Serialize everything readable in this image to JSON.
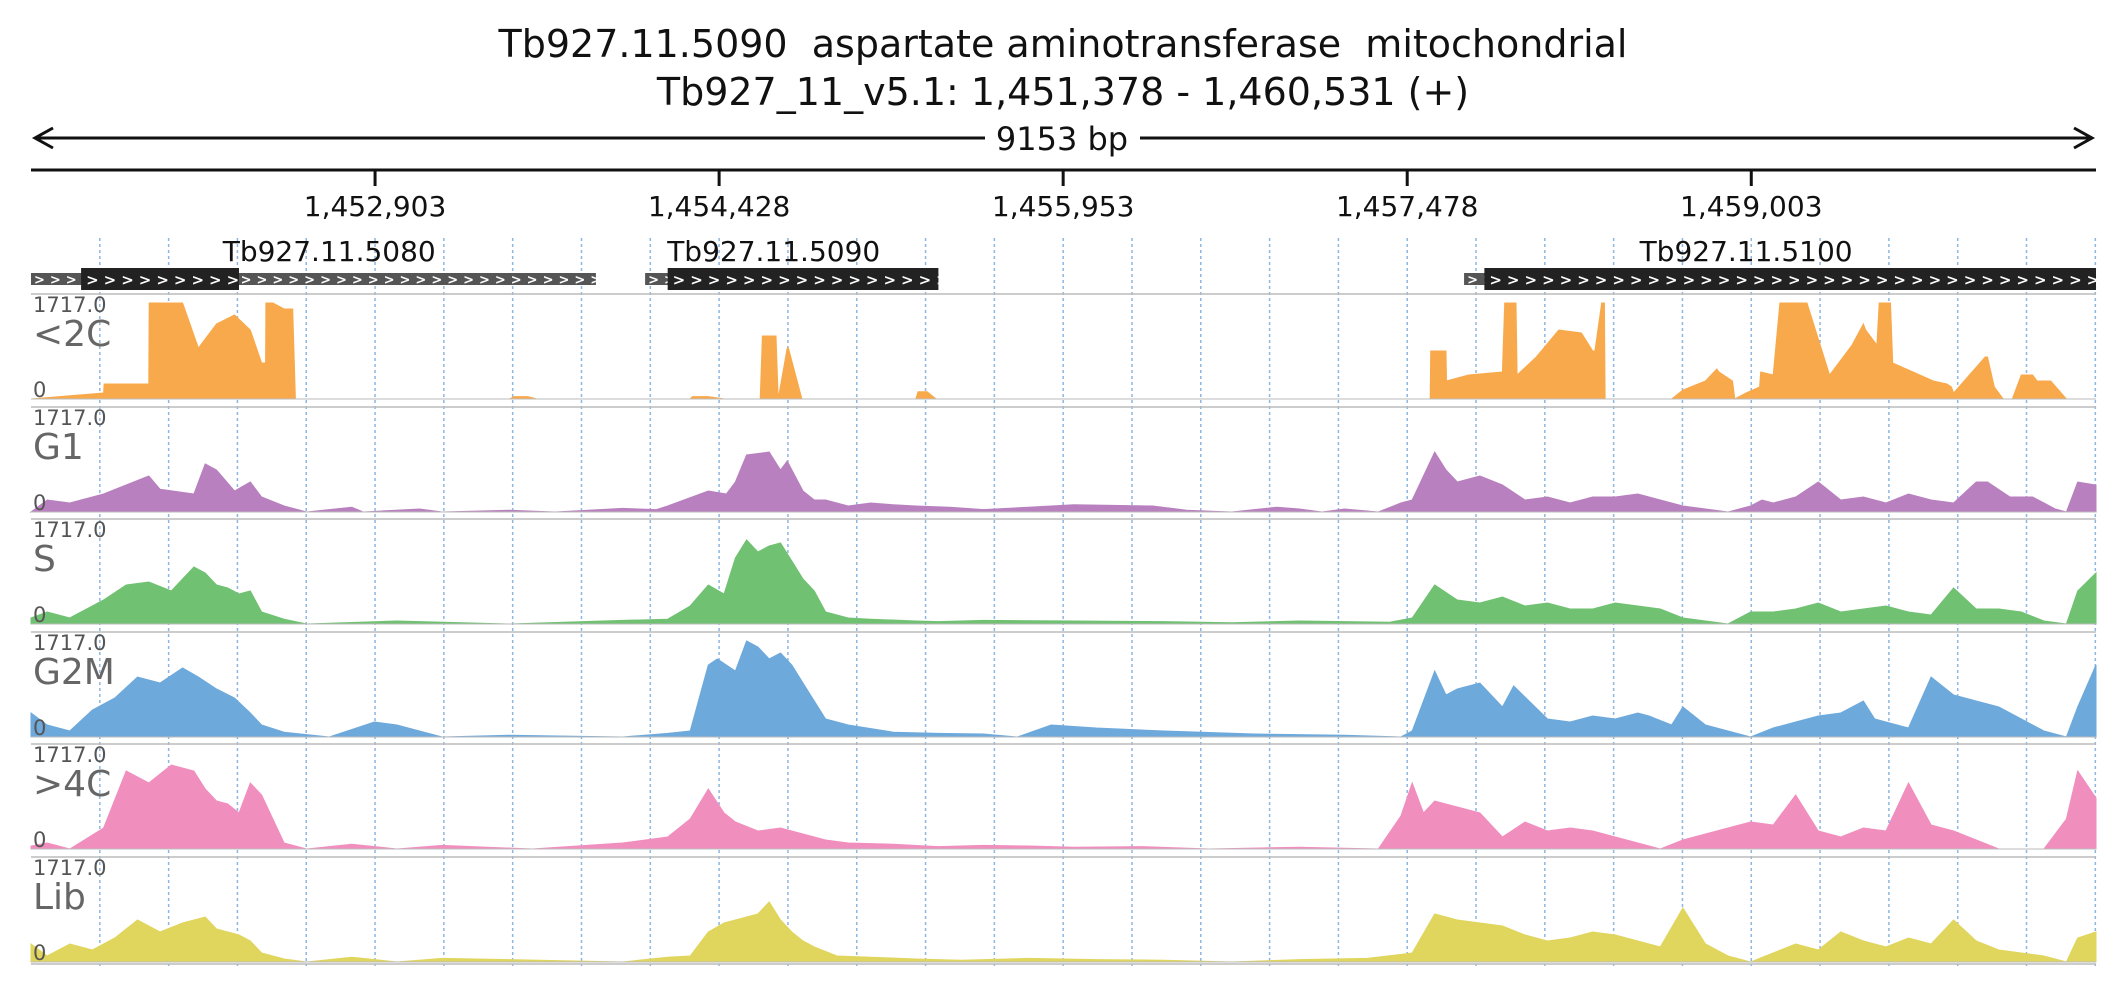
{
  "title_line1": "Tb927.11.5090  aspartate aminotransferase  mitochondrial",
  "title_line2": "Tb927_11_v5.1: 1,451,378 - 1,460,531 (+)",
  "chart_data": {
    "type": "area",
    "region": {
      "chromosome": "Tb927_11_v5.1",
      "start": 1451378,
      "end": 1460531,
      "strand": "+"
    },
    "span_label": "9153 bp",
    "ticks": [
      {
        "pos": 1452903,
        "label": "1,452,903"
      },
      {
        "pos": 1454428,
        "label": "1,454,428"
      },
      {
        "pos": 1455953,
        "label": "1,455,953"
      },
      {
        "pos": 1457478,
        "label": "1,457,478"
      },
      {
        "pos": 1459003,
        "label": "1,459,003"
      }
    ],
    "genes": [
      {
        "name": "Tb927.11.5080",
        "utr_start": 1451378,
        "utr_end": 1453882,
        "cds_start": 1451600,
        "cds_end": 1452300,
        "label_pos": 1452700
      },
      {
        "name": "Tb927.11.5090",
        "utr_start": 1454100,
        "utr_end": 1455400,
        "cds_start": 1454200,
        "cds_end": 1455400,
        "label_pos": 1454670
      },
      {
        "name": "Tb927.11.5100",
        "utr_start": 1457730,
        "utr_end": 1460531,
        "cds_start": 1457820,
        "cds_end": 1460531,
        "label_pos": 1458980
      }
    ],
    "ymax_label": "1717.0",
    "ymin_label": "0",
    "y_range": [
      0,
      1717.0
    ],
    "tracks": [
      {
        "name": "<2C",
        "color": "#F8A94B",
        "x": [
          1451378,
          1451700,
          1451702,
          1451900,
          1451902,
          1452050,
          1452120,
          1452200,
          1452280,
          1452350,
          1452400,
          1452418,
          1452419,
          1452450,
          1452500,
          1452538,
          1452550,
          1452630,
          1452700,
          1452800,
          1453500,
          1453520,
          1453580,
          1453620,
          1454300,
          1454310,
          1454380,
          1454450,
          1454520,
          1454610,
          1454620,
          1454680,
          1454690,
          1454730,
          1454735,
          1454795,
          1454800,
          1454900,
          1455300,
          1455310,
          1455350,
          1455390,
          1455395,
          1455500,
          1457580,
          1457582,
          1457650,
          1457652,
          1457750,
          1457900,
          1457910,
          1457960,
          1457965,
          1458050,
          1458150,
          1458250,
          1458300,
          1458310,
          1458340,
          1458352,
          1458355,
          1458450,
          1458650,
          1458700,
          1458800,
          1458850,
          1458860,
          1458920,
          1458930,
          1458980,
          1459040,
          1459045,
          1459100,
          1459130,
          1459250,
          1459350,
          1459450,
          1459500,
          1459510,
          1459560,
          1459570,
          1459620,
          1459630,
          1459810,
          1459870,
          1459890,
          1459900,
          1460040,
          1460050,
          1460080,
          1460120,
          1460160,
          1460200,
          1460250,
          1460270,
          1460330,
          1460400,
          1460531
        ],
        "y": [
          0,
          100,
          250,
          250,
          1600,
          1600,
          850,
          1250,
          1400,
          1150,
          600,
          600,
          1600,
          1600,
          1500,
          1500,
          0,
          0,
          0,
          0,
          0,
          40,
          40,
          0,
          0,
          40,
          40,
          0,
          0,
          0,
          1050,
          1050,
          0,
          850,
          850,
          0,
          0,
          0,
          0,
          120,
          120,
          0,
          0,
          0,
          0,
          800,
          800,
          300,
          400,
          450,
          1600,
          1600,
          400,
          700,
          1150,
          1100,
          800,
          800,
          1600,
          1600,
          0,
          0,
          0,
          150,
          300,
          500,
          450,
          300,
          0,
          100,
          200,
          450,
          400,
          1600,
          1600,
          400,
          900,
          1250,
          1150,
          900,
          1600,
          1600,
          600,
          300,
          250,
          200,
          100,
          700,
          700,
          200,
          0,
          0,
          400,
          400,
          300,
          300,
          0,
          0
        ]
      },
      {
        "name": "G1",
        "color": "#B880BE",
        "x": [
          1451378,
          1451450,
          1451550,
          1451700,
          1451800,
          1451900,
          1451950,
          1452100,
          1452150,
          1452200,
          1452280,
          1452350,
          1452400,
          1452500,
          1452600,
          1452800,
          1452850,
          1453100,
          1453200,
          1453500,
          1453700,
          1454000,
          1454150,
          1454200,
          1454380,
          1454460,
          1454500,
          1454550,
          1454650,
          1454700,
          1454730,
          1454800,
          1454850,
          1454900,
          1455000,
          1455100,
          1455200,
          1455300,
          1455450,
          1455600,
          1455800,
          1456000,
          1456350,
          1456500,
          1456700,
          1456900,
          1457000,
          1457100,
          1457200,
          1457350,
          1457450,
          1457500,
          1457600,
          1457650,
          1457700,
          1457800,
          1457900,
          1458000,
          1458100,
          1458200,
          1458300,
          1458400,
          1458500,
          1458600,
          1458700,
          1458800,
          1458900,
          1459000,
          1459050,
          1459100,
          1459200,
          1459300,
          1459400,
          1459500,
          1459600,
          1459700,
          1459800,
          1459900,
          1460000,
          1460050,
          1460150,
          1460250,
          1460300,
          1460350,
          1460400,
          1460450,
          1460531
        ],
        "y": [
          0,
          200,
          150,
          300,
          450,
          600,
          380,
          300,
          800,
          700,
          350,
          500,
          250,
          100,
          0,
          80,
          0,
          50,
          0,
          30,
          0,
          60,
          40,
          100,
          350,
          300,
          500,
          950,
          1000,
          700,
          850,
          350,
          200,
          200,
          100,
          150,
          120,
          100,
          80,
          40,
          80,
          120,
          100,
          30,
          0,
          80,
          50,
          0,
          50,
          0,
          150,
          200,
          1000,
          700,
          500,
          600,
          450,
          200,
          250,
          150,
          250,
          250,
          300,
          200,
          100,
          50,
          0,
          100,
          200,
          150,
          250,
          500,
          200,
          250,
          150,
          300,
          200,
          150,
          500,
          500,
          250,
          250,
          150,
          50,
          0,
          500,
          450
        ]
      },
      {
        "name": "S",
        "color": "#70C172",
        "x": [
          1451378,
          1451450,
          1451550,
          1451700,
          1451800,
          1451900,
          1452000,
          1452100,
          1452150,
          1452200,
          1452250,
          1452300,
          1452350,
          1452400,
          1452500,
          1452600,
          1453000,
          1453500,
          1454000,
          1454200,
          1454300,
          1454380,
          1454450,
          1454500,
          1454550,
          1454600,
          1454650,
          1454700,
          1454750,
          1454800,
          1454850,
          1454900,
          1455000,
          1455100,
          1455300,
          1455400,
          1455600,
          1456000,
          1456400,
          1456700,
          1457000,
          1457400,
          1457500,
          1457600,
          1457700,
          1457800,
          1457900,
          1458000,
          1458100,
          1458200,
          1458300,
          1458400,
          1458500,
          1458600,
          1458700,
          1458800,
          1458900,
          1459000,
          1459100,
          1459200,
          1459300,
          1459400,
          1459500,
          1459600,
          1459700,
          1459800,
          1459900,
          1460000,
          1460100,
          1460200,
          1460300,
          1460400,
          1460450,
          1460531
        ],
        "y": [
          100,
          200,
          100,
          400,
          650,
          700,
          550,
          950,
          850,
          650,
          600,
          500,
          550,
          200,
          80,
          0,
          50,
          0,
          60,
          80,
          300,
          650,
          500,
          1100,
          1400,
          1200,
          1300,
          1350,
          1050,
          750,
          550,
          200,
          100,
          80,
          50,
          40,
          60,
          50,
          40,
          20,
          50,
          30,
          100,
          650,
          400,
          350,
          450,
          300,
          350,
          250,
          250,
          350,
          300,
          250,
          100,
          50,
          0,
          200,
          200,
          250,
          350,
          200,
          250,
          300,
          200,
          150,
          600,
          250,
          250,
          200,
          50,
          0,
          550,
          850
        ]
      },
      {
        "name": "G2M",
        "color": "#6EA9DB",
        "x": [
          1451378,
          1451450,
          1451550,
          1451650,
          1451750,
          1451850,
          1451950,
          1452050,
          1452120,
          1452200,
          1452280,
          1452350,
          1452400,
          1452500,
          1452700,
          1452900,
          1453000,
          1453200,
          1453500,
          1454000,
          1454200,
          1454300,
          1454380,
          1454420,
          1454500,
          1454550,
          1454600,
          1454650,
          1454700,
          1454750,
          1454800,
          1454850,
          1454900,
          1455000,
          1455200,
          1455400,
          1455600,
          1455750,
          1455900,
          1456100,
          1456400,
          1456800,
          1457200,
          1457450,
          1457500,
          1457600,
          1457650,
          1457700,
          1457800,
          1457900,
          1457950,
          1458100,
          1458200,
          1458300,
          1458400,
          1458500,
          1458550,
          1458650,
          1458700,
          1458800,
          1458900,
          1459000,
          1459100,
          1459200,
          1459300,
          1459400,
          1459500,
          1459550,
          1459650,
          1459700,
          1459800,
          1459900,
          1460000,
          1460100,
          1460200,
          1460300,
          1460400,
          1460450,
          1460531
        ],
        "y": [
          400,
          200,
          100,
          450,
          650,
          1000,
          900,
          1150,
          1000,
          800,
          650,
          400,
          200,
          80,
          0,
          250,
          200,
          0,
          30,
          0,
          60,
          100,
          1200,
          1300,
          1100,
          1600,
          1500,
          1300,
          1400,
          1200,
          900,
          600,
          300,
          200,
          80,
          60,
          50,
          0,
          200,
          150,
          100,
          50,
          30,
          0,
          100,
          1100,
          700,
          800,
          900,
          500,
          850,
          300,
          250,
          350,
          300,
          400,
          350,
          200,
          500,
          200,
          100,
          0,
          150,
          250,
          350,
          400,
          600,
          300,
          200,
          150,
          1000,
          700,
          600,
          500,
          300,
          100,
          0,
          500,
          1200
        ]
      },
      {
        "name": ">4C",
        "color": "#F08EBE",
        "x": [
          1451378,
          1451450,
          1451550,
          1451700,
          1451800,
          1451900,
          1452000,
          1452100,
          1452150,
          1452200,
          1452250,
          1452300,
          1452350,
          1452400,
          1452500,
          1452600,
          1452800,
          1453000,
          1453200,
          1453400,
          1453600,
          1453800,
          1454000,
          1454200,
          1454300,
          1454380,
          1454450,
          1454500,
          1454600,
          1454700,
          1454800,
          1454900,
          1455000,
          1455200,
          1455400,
          1455600,
          1455800,
          1456000,
          1456300,
          1456600,
          1457000,
          1457350,
          1457450,
          1457500,
          1457550,
          1457600,
          1457700,
          1457800,
          1457900,
          1458000,
          1458100,
          1458200,
          1458300,
          1458400,
          1458500,
          1458600,
          1458700,
          1458800,
          1458900,
          1459000,
          1459100,
          1459200,
          1459300,
          1459400,
          1459500,
          1459600,
          1459700,
          1459800,
          1459900,
          1460000,
          1460100,
          1460200,
          1460300,
          1460400,
          1460450,
          1460531
        ],
        "y": [
          50,
          100,
          0,
          350,
          1300,
          1100,
          1400,
          1300,
          1000,
          800,
          750,
          600,
          1100,
          900,
          100,
          0,
          80,
          0,
          60,
          30,
          0,
          50,
          100,
          200,
          500,
          1000,
          600,
          450,
          300,
          350,
          250,
          150,
          100,
          80,
          40,
          60,
          50,
          30,
          40,
          0,
          30,
          0,
          550,
          1100,
          600,
          800,
          700,
          600,
          200,
          450,
          300,
          350,
          300,
          200,
          100,
          0,
          150,
          250,
          350,
          450,
          400,
          900,
          300,
          200,
          350,
          300,
          1100,
          400,
          300,
          150,
          0,
          0,
          0,
          500,
          1300,
          850
        ]
      },
      {
        "name": "Lib",
        "color": "#E0D55D",
        "x": [
          1451378,
          1451450,
          1451550,
          1451650,
          1451750,
          1451850,
          1451950,
          1452050,
          1452150,
          1452200,
          1452300,
          1452350,
          1452400,
          1452500,
          1452600,
          1452800,
          1453000,
          1453200,
          1453500,
          1454000,
          1454200,
          1454300,
          1454380,
          1454450,
          1454500,
          1454550,
          1454600,
          1454650,
          1454700,
          1454750,
          1454800,
          1454850,
          1454950,
          1455100,
          1455300,
          1455500,
          1455800,
          1456100,
          1456400,
          1456700,
          1457000,
          1457300,
          1457500,
          1457600,
          1457700,
          1457800,
          1457900,
          1458000,
          1458100,
          1458200,
          1458300,
          1458400,
          1458500,
          1458600,
          1458700,
          1458800,
          1458900,
          1459000,
          1459100,
          1459200,
          1459300,
          1459400,
          1459500,
          1459600,
          1459700,
          1459800,
          1459900,
          1460000,
          1460100,
          1460200,
          1460300,
          1460400,
          1460450,
          1460531
        ],
        "y": [
          300,
          100,
          300,
          200,
          400,
          700,
          500,
          650,
          750,
          550,
          450,
          350,
          150,
          50,
          0,
          80,
          0,
          60,
          40,
          0,
          80,
          100,
          500,
          650,
          700,
          750,
          800,
          1000,
          700,
          500,
          350,
          250,
          100,
          80,
          50,
          30,
          60,
          40,
          30,
          0,
          40,
          60,
          150,
          800,
          700,
          650,
          600,
          450,
          350,
          400,
          500,
          450,
          350,
          250,
          900,
          300,
          100,
          0,
          150,
          300,
          200,
          500,
          350,
          250,
          400,
          300,
          700,
          350,
          200,
          150,
          100,
          0,
          400,
          500
        ]
      }
    ]
  }
}
